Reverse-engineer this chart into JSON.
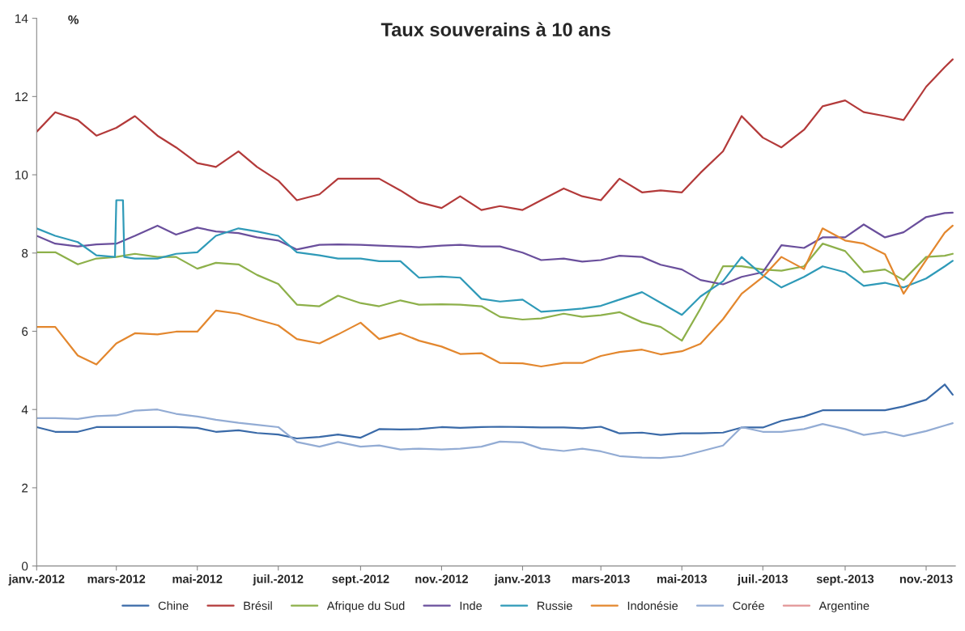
{
  "chart_data": {
    "type": "line",
    "title": "Taux souverains à 10 ans",
    "ylabel": "%",
    "x": [
      "2012-01-01",
      "2012-01-15",
      "2012-02-01",
      "2012-02-15",
      "2012-03-01",
      "2012-03-15",
      "2012-04-01",
      "2012-04-15",
      "2012-05-01",
      "2012-05-15",
      "2012-06-01",
      "2012-06-15",
      "2012-07-01",
      "2012-07-15",
      "2012-08-01",
      "2012-08-15",
      "2012-09-01",
      "2012-09-15",
      "2012-10-01",
      "2012-10-15",
      "2012-11-01",
      "2012-11-15",
      "2012-12-01",
      "2012-12-15",
      "2013-01-01",
      "2013-01-15",
      "2013-02-01",
      "2013-02-15",
      "2013-03-01",
      "2013-03-15",
      "2013-04-01",
      "2013-04-15",
      "2013-05-01",
      "2013-05-15",
      "2013-06-01",
      "2013-06-15",
      "2013-07-01",
      "2013-07-15",
      "2013-08-01",
      "2013-08-15",
      "2013-09-01",
      "2013-09-15",
      "2013-10-01",
      "2013-10-15",
      "2013-11-01",
      "2013-11-15",
      "2013-11-21"
    ],
    "series": [
      {
        "name": "Chine",
        "color": "#3a6aa8",
        "values": [
          3.55,
          3.43,
          3.43,
          3.55,
          3.55,
          3.55,
          3.55,
          3.55,
          3.53,
          3.43,
          3.47,
          3.4,
          3.36,
          3.26,
          3.3,
          3.36,
          3.28,
          3.5,
          3.49,
          3.5,
          3.55,
          3.53,
          3.55,
          3.56,
          3.55,
          3.54,
          3.54,
          3.52,
          3.56,
          3.39,
          3.41,
          3.35,
          3.39,
          3.39,
          3.41,
          3.54,
          3.54,
          3.71,
          3.82,
          3.98,
          3.98,
          3.98,
          3.98,
          4.08,
          4.25,
          4.64,
          4.38
        ]
      },
      {
        "name": "Brésil",
        "color": "#b33a3a",
        "values": [
          11.1,
          11.6,
          11.4,
          11.0,
          11.2,
          11.5,
          11.0,
          10.7,
          10.3,
          10.2,
          10.6,
          10.2,
          9.85,
          9.35,
          9.5,
          9.9,
          9.9,
          9.9,
          9.6,
          9.3,
          9.15,
          9.45,
          9.1,
          9.2,
          9.1,
          9.35,
          9.65,
          9.45,
          9.35,
          9.9,
          9.55,
          9.6,
          9.55,
          10.05,
          10.6,
          11.5,
          10.95,
          10.7,
          11.15,
          11.75,
          11.9,
          11.6,
          11.5,
          11.4,
          12.25,
          12.75,
          12.95
        ]
      },
      {
        "name": "Afrique du Sud",
        "color": "#8db04a",
        "values": [
          8.02,
          8.02,
          7.71,
          7.86,
          7.9,
          7.98,
          7.9,
          7.9,
          7.6,
          7.75,
          7.71,
          7.44,
          7.21,
          6.68,
          6.64,
          6.91,
          6.72,
          6.64,
          6.79,
          6.68,
          6.69,
          6.68,
          6.64,
          6.37,
          6.3,
          6.33,
          6.45,
          6.37,
          6.41,
          6.49,
          6.23,
          6.11,
          5.76,
          6.58,
          7.66,
          7.66,
          7.58,
          7.55,
          7.66,
          8.24,
          8.05,
          7.51,
          7.58,
          7.31,
          7.9,
          7.93,
          7.98
        ]
      },
      {
        "name": "Inde",
        "color": "#6a4f9c",
        "values": [
          8.44,
          8.24,
          8.17,
          8.22,
          8.24,
          8.44,
          8.7,
          8.47,
          8.65,
          8.55,
          8.51,
          8.4,
          8.32,
          8.09,
          8.21,
          8.22,
          8.21,
          8.19,
          8.17,
          8.15,
          8.19,
          8.21,
          8.17,
          8.17,
          8.01,
          7.82,
          7.86,
          7.78,
          7.82,
          7.93,
          7.9,
          7.7,
          7.58,
          7.31,
          7.2,
          7.39,
          7.51,
          8.2,
          8.13,
          8.4,
          8.4,
          8.73,
          8.4,
          8.53,
          8.92,
          9.02,
          9.03
        ]
      },
      {
        "name": "Russie",
        "color": "#2f9ab8",
        "x": [
          "2012-01-01",
          "2012-01-15",
          "2012-02-01",
          "2012-02-15",
          "2012-02-29",
          "2012-03-01",
          "2012-03-06",
          "2012-03-07",
          "2012-03-15",
          "2012-04-01",
          "2012-04-15",
          "2012-05-01",
          "2012-05-15",
          "2012-06-01",
          "2012-06-15",
          "2012-07-01",
          "2012-07-15",
          "2012-08-01",
          "2012-08-15",
          "2012-09-01",
          "2012-09-15",
          "2012-10-01",
          "2012-10-15",
          "2012-11-01",
          "2012-11-15",
          "2012-12-01",
          "2012-12-15",
          "2013-01-01",
          "2013-01-15",
          "2013-02-01",
          "2013-02-15",
          "2013-03-01",
          "2013-03-15",
          "2013-04-01",
          "2013-04-15",
          "2013-05-01",
          "2013-05-15",
          "2013-06-01",
          "2013-06-15",
          "2013-07-01",
          "2013-07-15",
          "2013-08-01",
          "2013-08-15",
          "2013-09-01",
          "2013-09-15",
          "2013-10-01",
          "2013-10-15",
          "2013-11-01",
          "2013-11-15",
          "2013-11-21"
        ],
        "values": [
          8.63,
          8.44,
          8.28,
          7.94,
          7.9,
          9.35,
          9.35,
          7.9,
          7.86,
          7.86,
          7.98,
          8.02,
          8.44,
          8.63,
          8.55,
          8.44,
          8.02,
          7.94,
          7.86,
          7.86,
          7.79,
          7.79,
          7.37,
          7.4,
          7.37,
          6.83,
          6.76,
          6.81,
          6.5,
          6.54,
          6.58,
          6.65,
          6.81,
          7.0,
          6.73,
          6.42,
          6.89,
          7.28,
          7.9,
          7.43,
          7.12,
          7.39,
          7.66,
          7.51,
          7.16,
          7.24,
          7.12,
          7.35,
          7.66,
          7.8
        ]
      },
      {
        "name": "Indonésie",
        "color": "#e3872e",
        "values": [
          6.11,
          6.11,
          5.38,
          5.15,
          5.69,
          5.95,
          5.92,
          5.99,
          5.99,
          6.53,
          6.45,
          6.3,
          6.15,
          5.8,
          5.69,
          5.92,
          6.22,
          5.8,
          5.95,
          5.76,
          5.61,
          5.42,
          5.44,
          5.19,
          5.18,
          5.1,
          5.19,
          5.19,
          5.37,
          5.47,
          5.53,
          5.41,
          5.49,
          5.68,
          6.31,
          6.96,
          7.39,
          7.9,
          7.59,
          8.63,
          8.32,
          8.24,
          7.97,
          6.96,
          7.82,
          8.52,
          8.7
        ]
      },
      {
        "name": "Corée",
        "color": "#93acd4",
        "values": [
          3.78,
          3.78,
          3.76,
          3.83,
          3.85,
          3.97,
          4.0,
          3.89,
          3.82,
          3.74,
          3.66,
          3.61,
          3.55,
          3.17,
          3.05,
          3.17,
          3.05,
          3.08,
          2.98,
          3.0,
          2.98,
          3.0,
          3.05,
          3.18,
          3.16,
          3.0,
          2.94,
          3.0,
          2.93,
          2.81,
          2.77,
          2.76,
          2.81,
          2.93,
          3.08,
          3.55,
          3.43,
          3.43,
          3.5,
          3.63,
          3.5,
          3.35,
          3.43,
          3.32,
          3.45,
          3.59,
          3.65
        ]
      },
      {
        "name": "Argentine",
        "color": "#e29596",
        "values": [
          null,
          null,
          null,
          null,
          null,
          null,
          null,
          null,
          null,
          null,
          null,
          null,
          null,
          null,
          null,
          null,
          null,
          null,
          null,
          null,
          null,
          null,
          null,
          null,
          null,
          null,
          null,
          null,
          null,
          null,
          null,
          null,
          null,
          null,
          null,
          null,
          null,
          null,
          null,
          null,
          null,
          null,
          null,
          null,
          null,
          null,
          null
        ]
      }
    ],
    "xlim": [
      "2012-01-01",
      "2013-11-23"
    ],
    "xticks": [
      {
        "value": "2012-01-01",
        "label": "janv.-2012"
      },
      {
        "value": "2012-03-01",
        "label": "mars-2012"
      },
      {
        "value": "2012-05-01",
        "label": "mai-2012"
      },
      {
        "value": "2012-07-01",
        "label": "juil.-2012"
      },
      {
        "value": "2012-09-01",
        "label": "sept.-2012"
      },
      {
        "value": "2012-11-01",
        "label": "nov.-2012"
      },
      {
        "value": "2013-01-01",
        "label": "janv.-2013"
      },
      {
        "value": "2013-03-01",
        "label": "mars-2013"
      },
      {
        "value": "2013-05-01",
        "label": "mai-2013"
      },
      {
        "value": "2013-07-01",
        "label": "juil.-2013"
      },
      {
        "value": "2013-09-01",
        "label": "sept.-2013"
      },
      {
        "value": "2013-11-01",
        "label": "nov.-2013"
      }
    ],
    "ylim": [
      0,
      14
    ],
    "yticks": [
      0,
      2,
      4,
      6,
      8,
      10,
      12,
      14
    ],
    "grid": false,
    "legend": "bottom",
    "marker": "none",
    "line_style": "solid"
  }
}
